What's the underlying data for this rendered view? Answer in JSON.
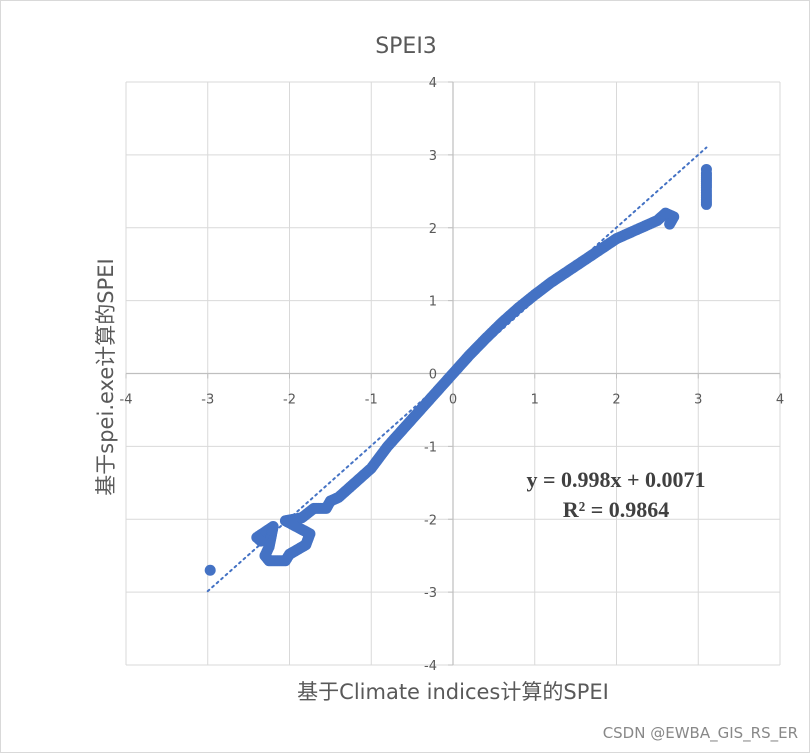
{
  "chart_data": {
    "type": "scatter",
    "title": "SPEI3",
    "xlabel": "基于Climate indices计算的SPEI",
    "ylabel": "基于spei.exe计算的SPEI",
    "xlim": [
      -4,
      4
    ],
    "ylim": [
      -4,
      4
    ],
    "x_ticks": [
      -4,
      -3,
      -2,
      -1,
      0,
      1,
      2,
      3,
      4
    ],
    "y_ticks": [
      -4,
      -3,
      -2,
      -1,
      0,
      1,
      2,
      3,
      4
    ],
    "x_tick_labels": [
      "-4",
      "-3",
      "-2",
      "-1",
      "0",
      "1",
      "2",
      "3",
      "4"
    ],
    "y_tick_labels": [
      "-4",
      "-3",
      "-2",
      "-1",
      "0",
      "1",
      "2",
      "3",
      "4"
    ],
    "grid": true,
    "series": [
      {
        "color": "#4472C4",
        "points": [
          [
            -2.97,
            -2.7
          ],
          [
            -2.35,
            -2.3
          ],
          [
            -2.4,
            -2.25
          ],
          [
            -2.2,
            -2.1
          ],
          [
            -2.25,
            -2.38
          ],
          [
            -2.3,
            -2.5
          ],
          [
            -2.25,
            -2.57
          ],
          [
            -2.05,
            -2.57
          ],
          [
            -2.0,
            -2.48
          ],
          [
            -1.8,
            -2.35
          ],
          [
            -1.75,
            -2.2
          ],
          [
            -1.95,
            -2.08
          ],
          [
            -2.05,
            -2.02
          ],
          [
            -1.85,
            -1.98
          ],
          [
            -1.7,
            -1.85
          ],
          [
            -1.55,
            -1.85
          ],
          [
            -1.5,
            -1.75
          ],
          [
            -1.4,
            -1.7
          ],
          [
            -1.3,
            -1.6
          ],
          [
            -1.2,
            -1.5
          ],
          [
            -1.1,
            -1.4
          ],
          [
            -1.0,
            -1.3
          ],
          [
            -0.9,
            -1.15
          ],
          [
            -0.8,
            -1.0
          ],
          [
            -0.6,
            -0.75
          ],
          [
            -0.4,
            -0.5
          ],
          [
            -0.2,
            -0.25
          ],
          [
            0.0,
            0.0
          ],
          [
            0.2,
            0.25
          ],
          [
            0.4,
            0.48
          ],
          [
            0.6,
            0.7
          ],
          [
            0.8,
            0.9
          ],
          [
            1.0,
            1.08
          ],
          [
            1.2,
            1.25
          ],
          [
            1.4,
            1.4
          ],
          [
            1.6,
            1.55
          ],
          [
            1.8,
            1.7
          ],
          [
            2.0,
            1.85
          ],
          [
            2.2,
            1.95
          ],
          [
            2.4,
            2.05
          ],
          [
            2.5,
            2.1
          ],
          [
            2.6,
            2.2
          ],
          [
            2.7,
            2.15
          ],
          [
            2.65,
            2.05
          ],
          [
            3.1,
            2.8
          ],
          [
            3.1,
            2.75
          ],
          [
            3.1,
            2.55
          ],
          [
            3.1,
            2.48
          ],
          [
            3.1,
            2.32
          ]
        ]
      }
    ],
    "trendline": {
      "style": "dotted",
      "slope": 0.998,
      "intercept": 0.0071,
      "x_range": [
        -3,
        3.1
      ],
      "equation": "y = 0.998x + 0.0071",
      "r_squared": "R² = 0.9864"
    }
  },
  "watermark": "CSDN @EWBA_GIS_RS_ER"
}
